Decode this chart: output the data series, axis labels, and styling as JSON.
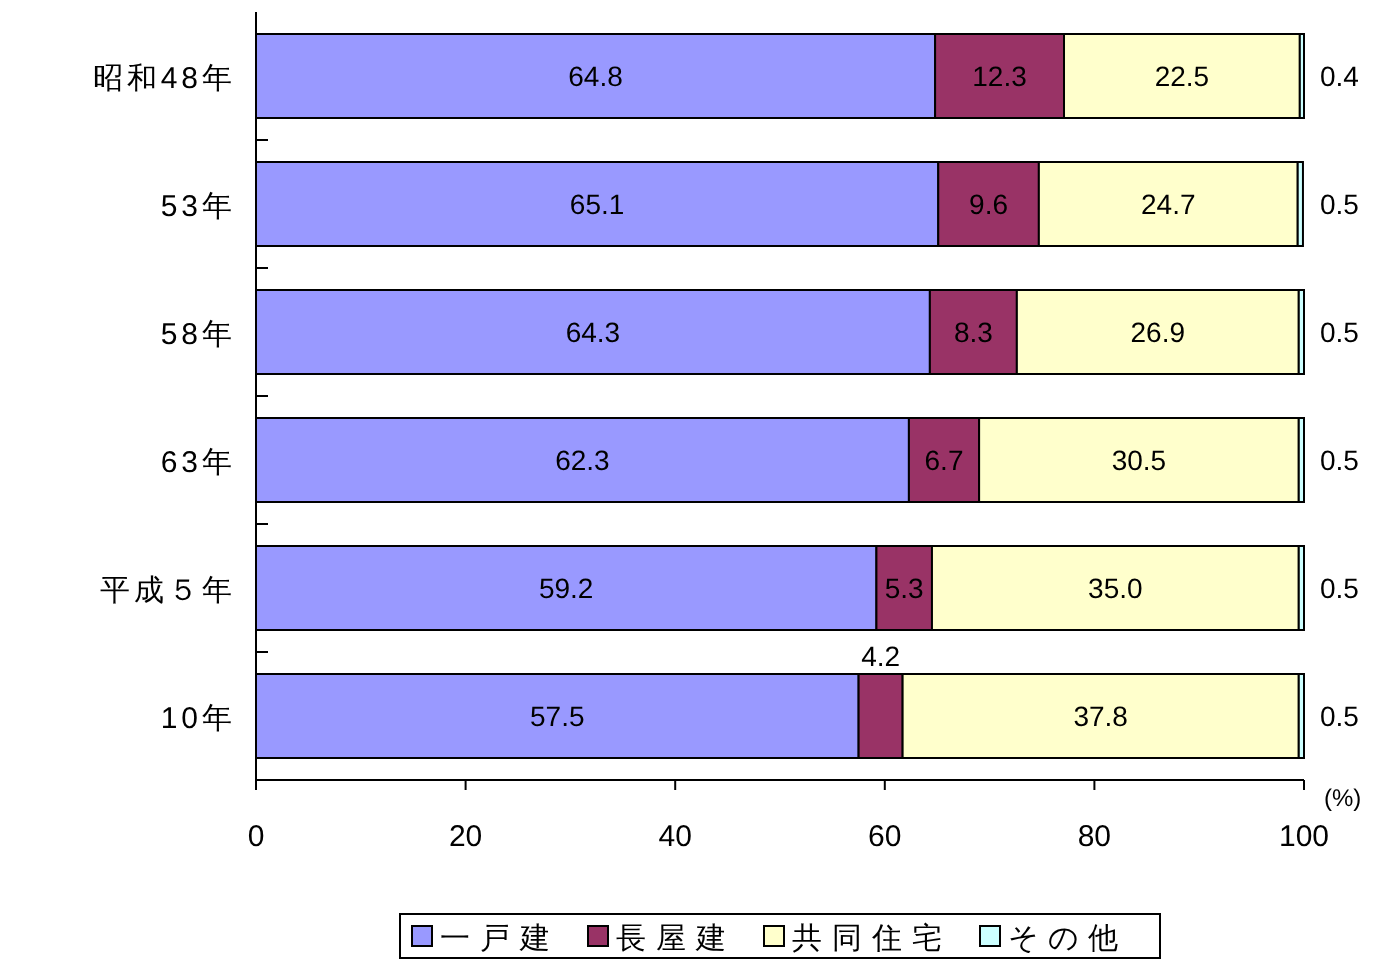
{
  "chart_data": {
    "type": "bar",
    "orientation": "horizontal",
    "stacked": true,
    "categories": [
      "昭和48年",
      "53年",
      "58年",
      "63年",
      "平成５年",
      "10年"
    ],
    "series": [
      {
        "name": "一戸建",
        "color": "#9999ff",
        "values": [
          64.8,
          65.1,
          64.3,
          62.3,
          59.2,
          57.5
        ],
        "value_labels": [
          "64.8",
          "65.1",
          "64.3",
          "62.3",
          "59.2",
          "57.5"
        ]
      },
      {
        "name": "長屋建",
        "color": "#993366",
        "values": [
          12.3,
          9.6,
          8.3,
          6.7,
          5.3,
          4.2
        ],
        "value_labels": [
          "12.3",
          "9.6",
          "8.3",
          "6.7",
          "5.3",
          "4.2"
        ]
      },
      {
        "name": "共同住宅",
        "color": "#ffffcc",
        "values": [
          22.5,
          24.7,
          26.9,
          30.5,
          35.0,
          37.8
        ],
        "value_labels": [
          "22.5",
          "24.7",
          "26.9",
          "30.5",
          "35.0",
          "37.8"
        ]
      },
      {
        "name": "その他",
        "color": "#ccffff",
        "values": [
          0.4,
          0.5,
          0.5,
          0.5,
          0.5,
          0.5
        ],
        "value_labels": [
          "0.4",
          "0.5",
          "0.5",
          "0.5",
          "0.5",
          "0.5"
        ]
      }
    ],
    "xlim": [
      0,
      100
    ],
    "xticks": [
      0,
      20,
      40,
      60,
      80,
      100
    ],
    "annotations": [
      "(%)"
    ],
    "legend": "bottom",
    "grid": false
  }
}
